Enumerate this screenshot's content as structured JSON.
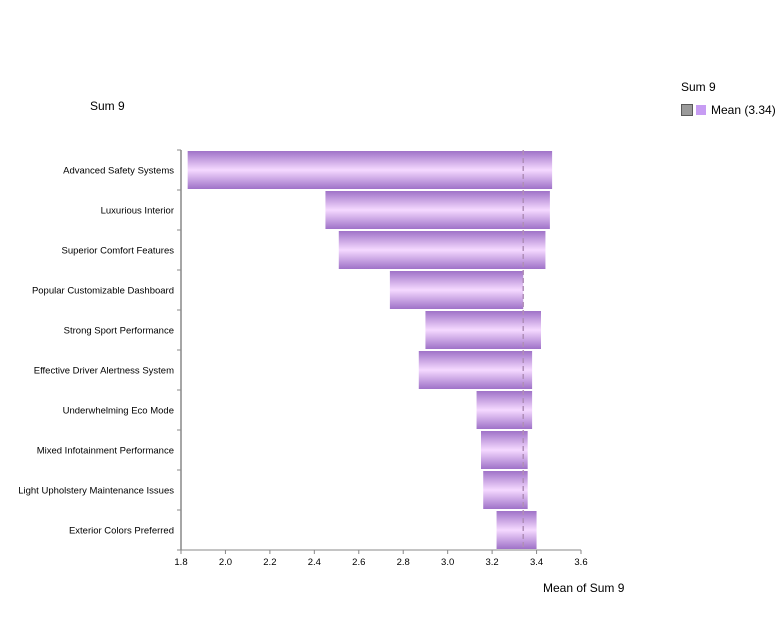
{
  "legend": {
    "title": "Sum 9",
    "entry": "Mean (3.34)",
    "swatch_color": "#c79cf3"
  },
  "colors": {
    "bar_edge": "#9f72c8",
    "bar_center": "#f5d9ff",
    "mean_line": "#b08fb8",
    "axis": "#888888"
  },
  "chart_data": {
    "type": "bar",
    "orientation": "horizontal",
    "title": "Sum 9",
    "xlabel": "Mean of Sum 9",
    "ylabel": "",
    "xlim": [
      1.8,
      3.6
    ],
    "xticks": [
      "1.8",
      "2.0",
      "2.2",
      "2.4",
      "2.6",
      "2.8",
      "3.0",
      "3.2",
      "3.4",
      "3.6"
    ],
    "mean": 3.34,
    "categories": [
      "Advanced Safety Systems",
      "Luxurious Interior",
      "Superior Comfort Features",
      "Popular Customizable Dashboard",
      "Strong Sport Performance",
      "Effective Driver Alertness System",
      "Underwhelming Eco Mode",
      "Mixed Infotainment Performance",
      "Light Upholstery Maintenance Issues",
      "Exterior Colors Preferred"
    ],
    "ranges": [
      [
        1.83,
        3.47
      ],
      [
        2.45,
        3.46
      ],
      [
        2.51,
        3.44
      ],
      [
        2.74,
        3.34
      ],
      [
        2.9,
        3.42
      ],
      [
        2.87,
        3.38
      ],
      [
        3.13,
        3.38
      ],
      [
        3.15,
        3.36
      ],
      [
        3.16,
        3.36
      ],
      [
        3.22,
        3.4
      ]
    ]
  }
}
